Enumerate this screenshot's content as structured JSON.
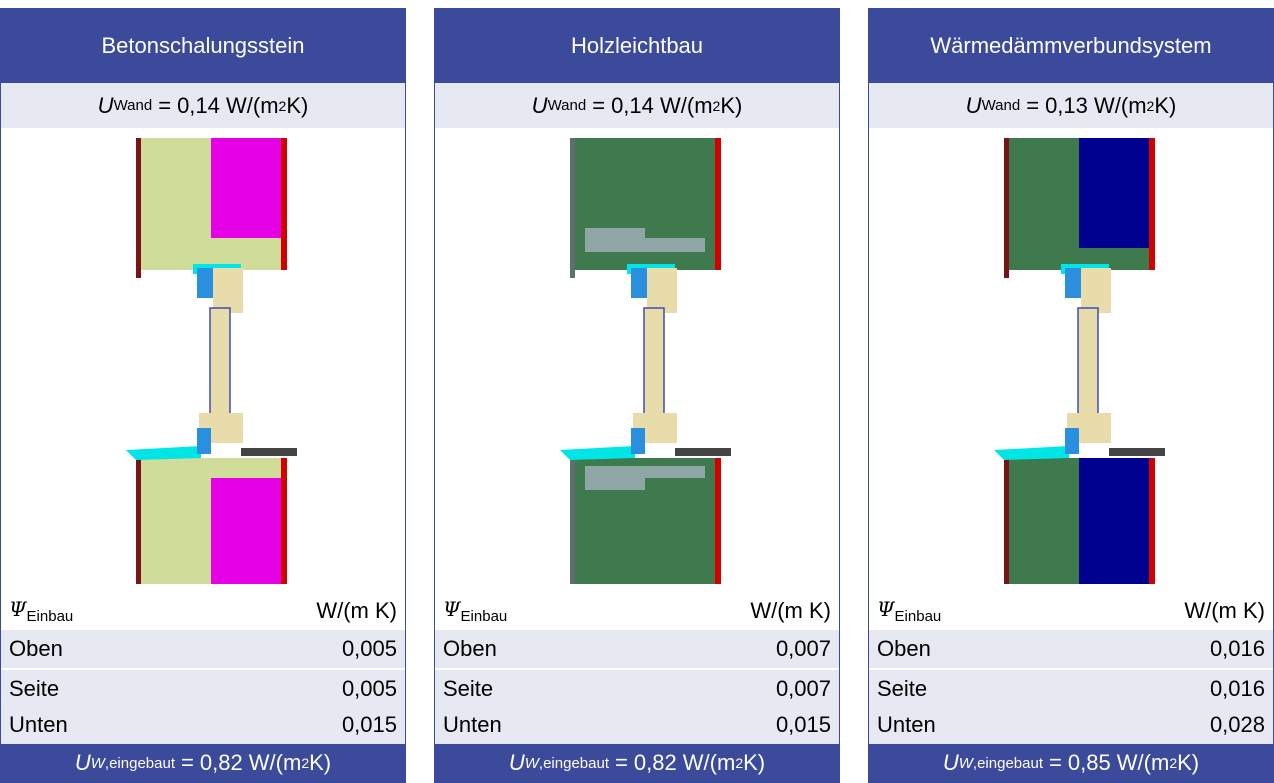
{
  "panels": [
    {
      "title": "Betonschalungsstein",
      "u_wand": {
        "symbol": "U",
        "sub": "Wand",
        "value": "0,14 W/(m",
        "sup": "2",
        "unit_end": " K)"
      },
      "psi": {
        "symbol": "Ψ",
        "sub": "Einbau",
        "unit": "W/(m K)"
      },
      "rows": [
        {
          "label": "Oben",
          "value": "0,005"
        },
        {
          "label": "Seite",
          "value": "0,005"
        },
        {
          "label": "Unten",
          "value": "0,015"
        }
      ],
      "u_w": {
        "symbol": "U",
        "sub_italic": "W",
        "sub": ",eingebaut",
        "value": "0,82 W/(m",
        "sup": "2",
        "unit_end": " K)"
      },
      "wall": {
        "main": "#cfdc9a",
        "insulation": "#e600e6",
        "outer": "#d40000",
        "inner": "#7a1414",
        "top_band": "#cfdc9a"
      }
    },
    {
      "title": "Holzleichtbau",
      "u_wand": {
        "symbol": "U",
        "sub": "Wand",
        "value": "0,14 W/(m",
        "sup": "2",
        "unit_end": " K)"
      },
      "psi": {
        "symbol": "Ψ",
        "sub": "Einbau",
        "unit": "W/(m K)"
      },
      "rows": [
        {
          "label": "Oben",
          "value": "0,007"
        },
        {
          "label": "Seite",
          "value": "0,007"
        },
        {
          "label": "Unten",
          "value": "0,015"
        }
      ],
      "u_w": {
        "symbol": "U",
        "sub_italic": "W",
        "sub": ",eingebaut",
        "value": "0,82 W/(m",
        "sup": "2",
        "unit_end": " K)"
      },
      "wall": {
        "main": "#3f7a4f",
        "insulation": "#3f7a4f",
        "outer": "#d40000",
        "inner": "#5f6f6f",
        "top_band": "#8ea6a6"
      }
    },
    {
      "title": "Wärmedämmverbundsystem",
      "u_wand": {
        "symbol": "U",
        "sub": "Wand",
        "value": "0,13 W/(m",
        "sup": "2",
        "unit_end": " K)"
      },
      "psi": {
        "symbol": "Ψ",
        "sub": "Einbau",
        "unit": "W/(m K)"
      },
      "rows": [
        {
          "label": "Oben",
          "value": "0,016"
        },
        {
          "label": "Seite",
          "value": "0,016"
        },
        {
          "label": "Unten",
          "value": "0,028"
        }
      ],
      "u_w": {
        "symbol": "U",
        "sub_italic": "W",
        "sub": ",eingebaut",
        "value": "0,85 W/(m",
        "sup": "2",
        "unit_end": " K)"
      },
      "wall": {
        "main": "#3f7a4f",
        "insulation": "#00008f",
        "outer": "#d40000",
        "inner": "#7a1414",
        "top_band": "#3f7a4f"
      }
    }
  ]
}
